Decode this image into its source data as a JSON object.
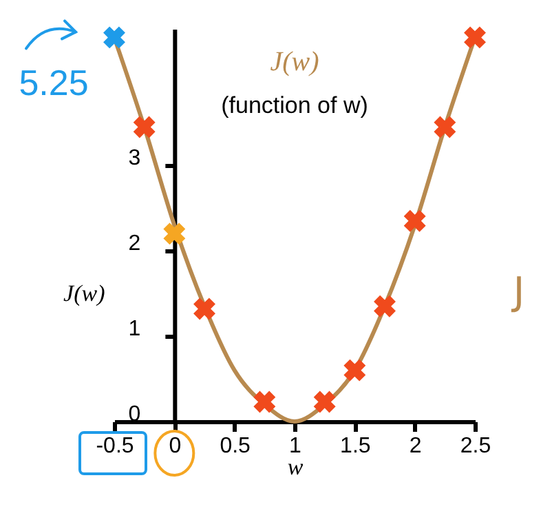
{
  "chart_data": {
    "type": "line",
    "title": "J(w)",
    "subtitle": "(function of w)",
    "xlabel": "w",
    "ylabel": "J(w)",
    "xlim": [
      -0.5,
      2.5
    ],
    "xticks": [
      -0.5,
      0,
      0.5,
      1,
      1.5,
      2,
      2.5
    ],
    "ylim": [
      0,
      4.6
    ],
    "yticks": [
      0,
      1,
      2,
      3
    ],
    "grid": false,
    "line_style": "solid",
    "series": [
      {
        "color": "#b88a4f",
        "marker": "none",
        "x": [
          -0.5,
          -0.25,
          0,
          0.25,
          0.5,
          0.75,
          1,
          1.25,
          1.5,
          1.75,
          2,
          2.25,
          2.5
        ],
        "values": [
          4.5,
          3.45,
          2.3,
          1.35,
          0.6,
          0.2,
          0,
          0.2,
          0.6,
          1.35,
          2.3,
          3.45,
          4.5
        ]
      },
      {
        "type": "scatter",
        "color": "#f04a1c",
        "marker": "cross",
        "x": [
          -0.25,
          0.25,
          0.75,
          1.25,
          1.5,
          1.75,
          2,
          2.25,
          2.5
        ],
        "values": [
          3.45,
          1.32,
          0.23,
          0.23,
          0.6,
          1.35,
          2.35,
          3.45,
          4.5
        ]
      },
      {
        "type": "scatter",
        "color": "#f5a623",
        "marker": "cross",
        "x": [
          0
        ],
        "values": [
          2.2
        ]
      },
      {
        "type": "scatter",
        "color": "#1e9be9",
        "marker": "cross",
        "x": [
          -0.5
        ],
        "values": [
          4.5
        ]
      }
    ],
    "annotations": [
      {
        "text": "5.25",
        "x": -0.5,
        "y": 4.5
      },
      "J"
    ]
  }
}
